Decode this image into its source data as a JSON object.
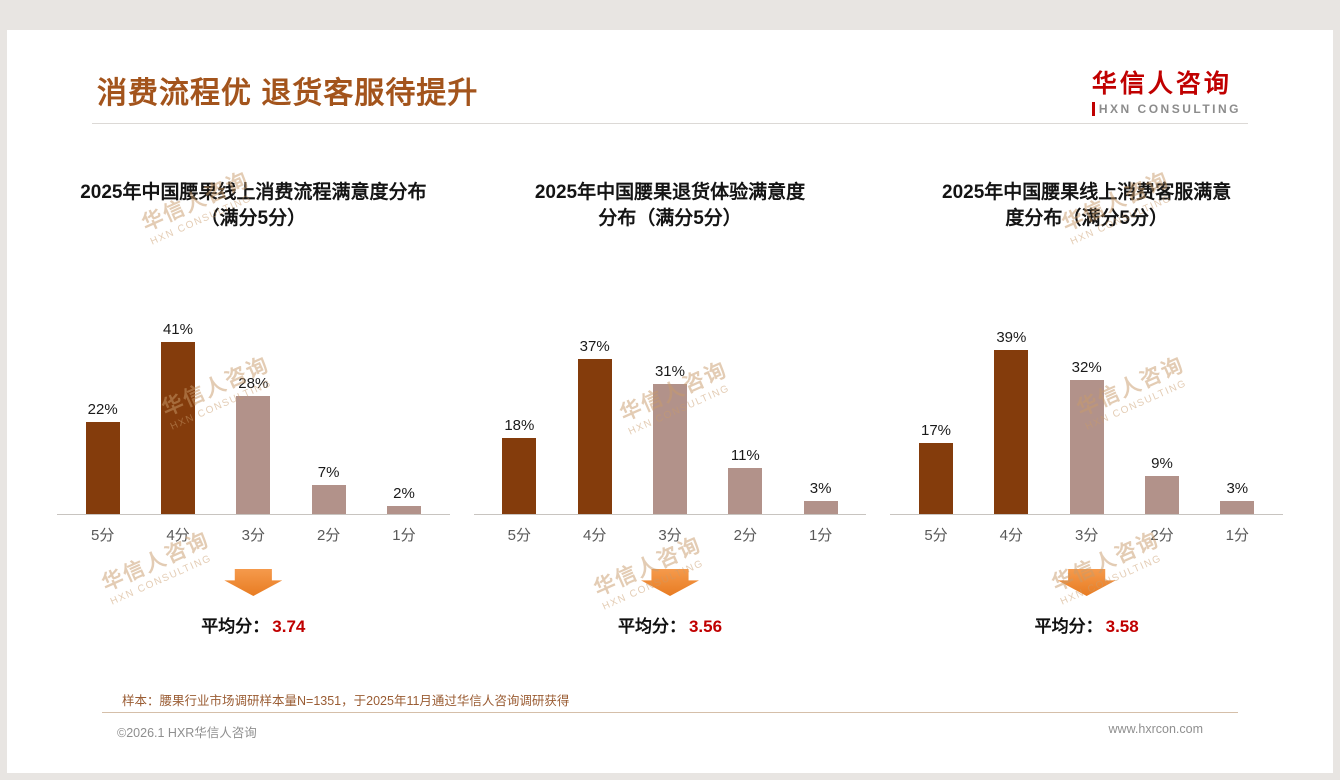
{
  "header": {
    "title": "消费流程优 退货客服待提升"
  },
  "logo": {
    "cn": "华信人咨询",
    "en": "HXN CONSULTING"
  },
  "watermark": {
    "line1": "华信人咨询",
    "line2": "HXN CONSULTING"
  },
  "chart_data": [
    {
      "type": "bar",
      "title": "2025年中国腰果线上消费流程满意度分布（满分5分）",
      "title_lines": [
        "2025年中国腰果线上消费流程满意度分布",
        "（满分5分）"
      ],
      "categories": [
        "5分",
        "4分",
        "3分",
        "2分",
        "1分"
      ],
      "values": [
        22,
        41,
        28,
        7,
        2
      ],
      "unit": "%",
      "bar_styles": [
        "dark",
        "dark",
        "light",
        "light",
        "light"
      ],
      "ylim": [
        0,
        45
      ],
      "avg_label": "平均分：",
      "avg_value": "3.74"
    },
    {
      "type": "bar",
      "title": "2025年中国腰果退货体验满意度分布（满分5分）",
      "title_lines": [
        "2025年中国腰果退货体验满意度",
        "分布（满分5分）"
      ],
      "categories": [
        "5分",
        "4分",
        "3分",
        "2分",
        "1分"
      ],
      "values": [
        18,
        37,
        31,
        11,
        3
      ],
      "unit": "%",
      "bar_styles": [
        "dark",
        "dark",
        "light",
        "light",
        "light"
      ],
      "ylim": [
        0,
        45
      ],
      "avg_label": "平均分：",
      "avg_value": "3.56"
    },
    {
      "type": "bar",
      "title": "2025年中国腰果线上消费客服满意度分布（满分5分）",
      "title_lines": [
        "2025年中国腰果线上消费客服满意",
        "度分布（满分5分）"
      ],
      "categories": [
        "5分",
        "4分",
        "3分",
        "2分",
        "1分"
      ],
      "values": [
        17,
        39,
        32,
        9,
        3
      ],
      "unit": "%",
      "bar_styles": [
        "dark",
        "dark",
        "light",
        "light",
        "light"
      ],
      "ylim": [
        0,
        45
      ],
      "avg_label": "平均分：",
      "avg_value": "3.58"
    }
  ],
  "footnote": "样本：腰果行业市场调研样本量N=1351，于2025年11月通过华信人咨询调研获得",
  "footer": {
    "left": "©2026.1 HXR华信人咨询",
    "right": "www.hxrcon.com"
  },
  "colors": {
    "title_brown": "#A3541C",
    "bar_dark": "#843C0C",
    "bar_light": "#B2928A",
    "arrow_orange": "#ED7D31",
    "avg_red": "#C00000",
    "logo_red": "#C00000"
  }
}
